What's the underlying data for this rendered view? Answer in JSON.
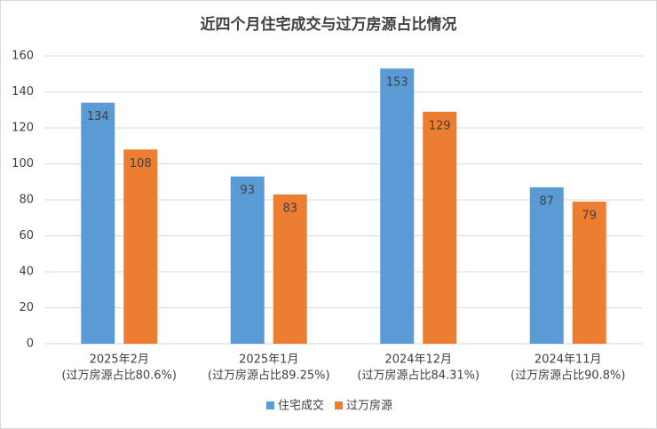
{
  "chart_data": {
    "type": "bar",
    "title": "近四个月住宅成交与过万房源占比情况",
    "categories": [
      [
        "2025年2月",
        "(过万房源占比80.6%)"
      ],
      [
        "2025年1月",
        "(过万房源占比89.25%)"
      ],
      [
        "2024年12月",
        "(过万房源占比84.31%)"
      ],
      [
        "2024年11月",
        "(过万房源占比90.8%)"
      ]
    ],
    "series": [
      {
        "name": "住宅成交",
        "color": "#5b9bd5",
        "values": [
          134,
          93,
          153,
          87
        ]
      },
      {
        "name": "过万房源",
        "color": "#ed7d31",
        "values": [
          108,
          83,
          129,
          79
        ]
      }
    ],
    "ylim": [
      0,
      160
    ],
    "yticks": [
      0,
      20,
      40,
      60,
      80,
      100,
      120,
      140,
      160
    ],
    "grid": true,
    "legend": "bottom"
  }
}
